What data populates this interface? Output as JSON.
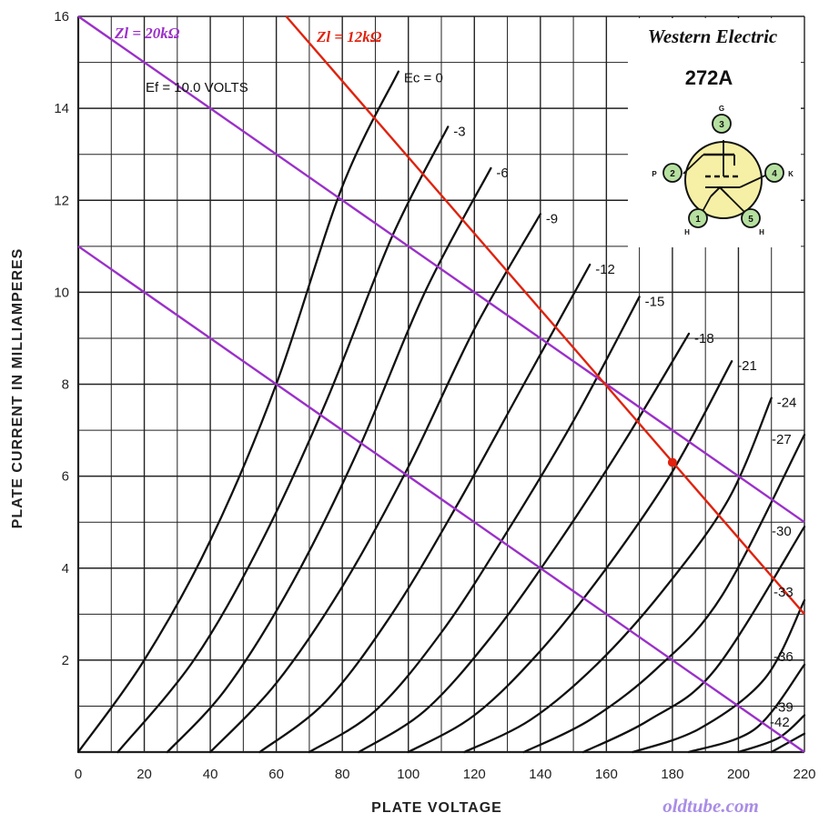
{
  "chart_data": {
    "type": "line",
    "title": "",
    "xlabel": "PLATE VOLTAGE",
    "ylabel": "PLATE CURRENT IN MILLIAMPERES",
    "xlim": [
      0,
      220
    ],
    "ylim": [
      0,
      16
    ],
    "x_ticks": [
      0,
      20,
      40,
      60,
      80,
      100,
      120,
      140,
      160,
      180,
      200,
      220
    ],
    "y_ticks": [
      2,
      4,
      6,
      8,
      10,
      12,
      14,
      16
    ],
    "x_tick_labels": [
      "0",
      "20",
      "40",
      "60",
      "80",
      "100",
      "120",
      "140",
      "160",
      "180",
      "200",
      "220"
    ],
    "y_tick_labels": [
      "2",
      "4",
      "6",
      "8",
      "10",
      "12",
      "14",
      "16"
    ],
    "grid": true,
    "annotation": "Ef = 10.0 VOLTS",
    "series": [
      {
        "name": "Ec = 0",
        "label": "Ec = 0",
        "x": [
          0,
          20,
          40,
          60,
          80,
          97
        ],
        "y": [
          0,
          2.0,
          4.6,
          8.0,
          12.3,
          14.8
        ]
      },
      {
        "name": "-3",
        "label": "-3",
        "x": [
          12,
          35,
          55,
          75,
          95,
          112
        ],
        "y": [
          0,
          2.0,
          4.5,
          7.6,
          11.2,
          13.6
        ]
      },
      {
        "name": "-6",
        "label": "-6",
        "x": [
          27,
          45,
          65,
          85,
          105,
          125
        ],
        "y": [
          0,
          1.4,
          3.7,
          6.6,
          10.0,
          12.7
        ]
      },
      {
        "name": "-9",
        "label": "-9",
        "x": [
          40,
          60,
          80,
          100,
          120,
          140
        ],
        "y": [
          0,
          1.5,
          3.6,
          6.2,
          9.2,
          11.7
        ]
      },
      {
        "name": "-12",
        "label": "-12",
        "x": [
          55,
          75,
          95,
          115,
          135,
          155
        ],
        "y": [
          0,
          1.1,
          3.0,
          5.4,
          8.0,
          10.6
        ]
      },
      {
        "name": "-15",
        "label": "-15",
        "x": [
          70,
          90,
          110,
          130,
          150,
          170
        ],
        "y": [
          0,
          0.9,
          2.6,
          4.8,
          7.2,
          9.9
        ]
      },
      {
        "name": "-18",
        "label": "-18",
        "x": [
          85,
          105,
          125,
          145,
          165,
          185
        ],
        "y": [
          0,
          0.9,
          2.5,
          4.5,
          6.7,
          9.1
        ]
      },
      {
        "name": "-21",
        "label": "-21",
        "x": [
          100,
          120,
          140,
          160,
          180,
          198
        ],
        "y": [
          0,
          0.8,
          2.2,
          4.0,
          6.1,
          8.5
        ]
      },
      {
        "name": "-24",
        "label": "-24",
        "x": [
          117,
          137,
          157,
          177,
          197,
          210
        ],
        "y": [
          0,
          0.7,
          1.9,
          3.5,
          5.5,
          7.7
        ]
      },
      {
        "name": "-27",
        "label": "-27",
        "x": [
          135,
          155,
          175,
          195,
          220
        ],
        "y": [
          0,
          0.7,
          1.8,
          3.4,
          6.9
        ]
      },
      {
        "name": "-30",
        "label": "-30",
        "x": [
          153,
          173,
          193,
          220
        ],
        "y": [
          0,
          0.7,
          1.8,
          4.9
        ]
      },
      {
        "name": "-33",
        "label": "-33",
        "x": [
          168,
          188,
          208,
          220
        ],
        "y": [
          0,
          0.5,
          1.6,
          3.3
        ]
      },
      {
        "name": "-36",
        "label": "-36",
        "x": [
          185,
          205,
          220
        ],
        "y": [
          0,
          0.5,
          1.9
        ]
      },
      {
        "name": "-39",
        "label": "-39",
        "x": [
          200,
          212,
          220
        ],
        "y": [
          0,
          0.3,
          0.8
        ]
      },
      {
        "name": "-42",
        "label": "-42",
        "x": [
          210,
          220
        ],
        "y": [
          0,
          0.4
        ]
      }
    ],
    "load_lines": [
      {
        "label": "Zl = 20kΩ",
        "color": "#9b30c9",
        "x": [
          0,
          220
        ],
        "y": [
          16,
          5.0
        ]
      },
      {
        "label": "Zl = 20kΩ",
        "color": "#9b30c9",
        "x": [
          0,
          220
        ],
        "y": [
          11,
          0
        ]
      },
      {
        "label": "Zl = 12kΩ",
        "color": "#e0220e",
        "x": [
          63,
          220
        ],
        "y": [
          16,
          3.0
        ]
      }
    ],
    "operating_point": {
      "x": 180,
      "y": 6.3,
      "color": "#e0220e"
    }
  },
  "tube": {
    "brand": "Western Electric",
    "model": "272A",
    "pins": [
      {
        "number": "1",
        "label": "H"
      },
      {
        "number": "2",
        "label": "P"
      },
      {
        "number": "3",
        "label": "G"
      },
      {
        "number": "4",
        "label": "K"
      },
      {
        "number": "5",
        "label": "H"
      }
    ],
    "pin_color": "#b6e0a0"
  },
  "annotations": {
    "filament": "Ef = 10.0 VOLTS"
  },
  "watermark": "oldtube.com",
  "colors": {
    "grid": "#222222",
    "curve": "#111111",
    "load_purple": "#9b30c9",
    "load_red": "#e0220e",
    "watermark": "#a98de6"
  }
}
